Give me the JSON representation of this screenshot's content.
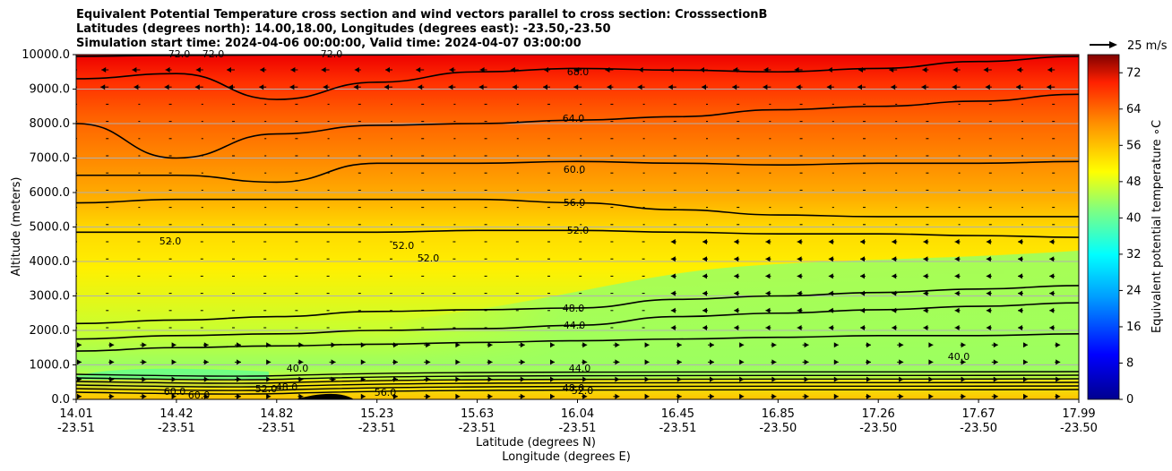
{
  "title_lines": [
    "Equivalent Potential Temperature cross section and wind vectors parallel to cross section: CrosssectionB",
    "Latitudes (degrees north): 14.00,18.00, Longitudes (degrees east): -23.50,-23.50",
    "Simulation start time: 2024-04-06 00:00:00, Valid time: 2024-04-07 03:00:00"
  ],
  "chart_data": {
    "type": "heatmap",
    "subtype": "cross-section filled contour with contour lines and wind vectors",
    "ylabel": "Altitude (meters)",
    "xlabel_lat": "Latitude (degrees N)",
    "xlabel_lon": "Longitude (degrees E)",
    "ylim": [
      0,
      10000
    ],
    "yticks": [
      "0.0",
      "1000.0",
      "2000.0",
      "3000.0",
      "4000.0",
      "5000.0",
      "6000.0",
      "7000.0",
      "8000.0",
      "9000.0",
      "10000.0"
    ],
    "xticks": [
      {
        "lat": "14.01",
        "lon": "-23.51"
      },
      {
        "lat": "14.42",
        "lon": "-23.51"
      },
      {
        "lat": "14.82",
        "lon": "-23.51"
      },
      {
        "lat": "15.23",
        "lon": "-23.51"
      },
      {
        "lat": "15.63",
        "lon": "-23.51"
      },
      {
        "lat": "16.04",
        "lon": "-23.51"
      },
      {
        "lat": "16.45",
        "lon": "-23.51"
      },
      {
        "lat": "16.85",
        "lon": "-23.50"
      },
      {
        "lat": "17.26",
        "lon": "-23.50"
      },
      {
        "lat": "17.67",
        "lon": "-23.50"
      },
      {
        "lat": "17.99",
        "lon": "-23.50"
      }
    ],
    "colorbar": {
      "label": "Equivalent potential temperature ∘C",
      "range": [
        0,
        76
      ],
      "ticks": [
        "0",
        "8",
        "16",
        "24",
        "32",
        "40",
        "48",
        "56",
        "64",
        "72"
      ]
    },
    "quiver_key": {
      "label": "25 m/s",
      "value": 25
    },
    "contour_labels": [
      "72.0",
      "72.0",
      "72.0",
      "68.0",
      "64.0",
      "60.0",
      "56.0",
      "52.0",
      "52.0",
      "52.0",
      "52.0",
      "48.0",
      "48.0",
      "48.0",
      "44.0",
      "44.0",
      "40.0",
      "40.0",
      "60.0",
      "60.0",
      "56.0",
      "52.0",
      "52.0"
    ],
    "contour_levels": [
      {
        "level": 72,
        "heights_m": [
          9950,
          9980,
          9990,
          9990,
          10010,
          10020,
          10030,
          10030,
          10030,
          10030,
          10030
        ]
      },
      {
        "level": 68,
        "heights_m": [
          9300,
          9450,
          8700,
          9200,
          9500,
          9600,
          9550,
          9500,
          9600,
          9800,
          9950
        ]
      },
      {
        "level": 64,
        "heights_m": [
          8000,
          7000,
          7700,
          7950,
          8000,
          8100,
          8200,
          8400,
          8500,
          8650,
          8850
        ]
      },
      {
        "level": 60,
        "heights_m": [
          6500,
          6500,
          6300,
          6850,
          6850,
          6900,
          6850,
          6800,
          6850,
          6850,
          6900
        ]
      },
      {
        "level": 56,
        "heights_m": [
          5700,
          5800,
          5800,
          5800,
          5800,
          5700,
          5500,
          5350,
          5300,
          5300,
          5300
        ]
      },
      {
        "level": 52,
        "heights_m": [
          4850,
          4850,
          4850,
          4850,
          4900,
          4900,
          4850,
          4800,
          4800,
          4750,
          4700
        ]
      },
      {
        "level": 48,
        "heights_m": [
          2200,
          2300,
          2400,
          2550,
          2600,
          2650,
          2900,
          3000,
          3100,
          3200,
          3300
        ]
      },
      {
        "level": 44,
        "heights_m": [
          1750,
          1850,
          1900,
          2000,
          2050,
          2150,
          2400,
          2500,
          2600,
          2700,
          2800
        ]
      },
      {
        "level": 40,
        "heights_m": [
          1400,
          1500,
          1550,
          1600,
          1650,
          1700,
          1750,
          1800,
          1850,
          1850,
          1900
        ]
      }
    ]
  }
}
